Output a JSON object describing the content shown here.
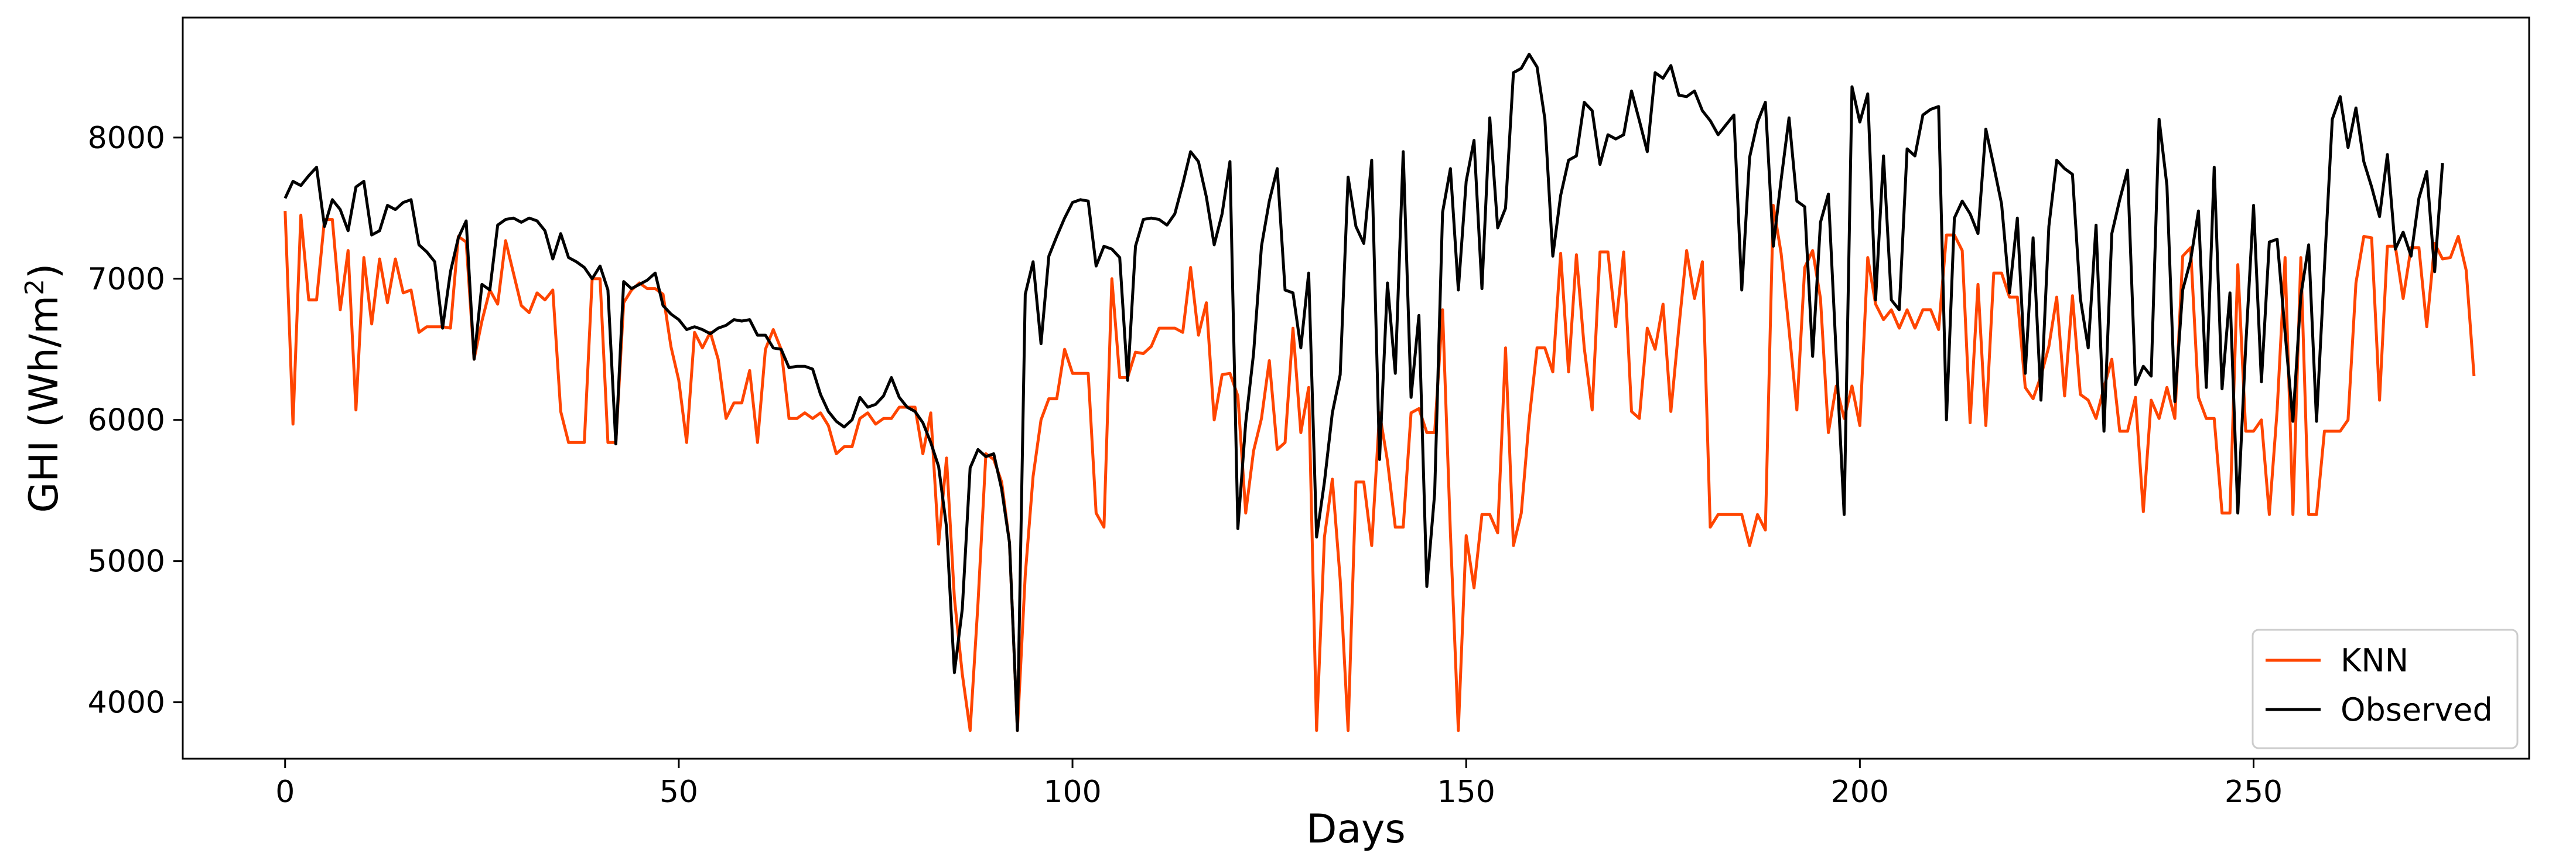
{
  "chart_data": {
    "type": "line",
    "title": "",
    "xlabel": "Days",
    "ylabel_text": "GHI (Wh/m",
    "ylabel_sup": "2",
    "ylabel_close": ")",
    "xlim": [
      -13,
      285
    ],
    "ylim": [
      3600,
      8850
    ],
    "xticks": [
      0,
      50,
      100,
      150,
      200,
      250
    ],
    "yticks": [
      4000,
      5000,
      6000,
      7000,
      8000
    ],
    "grid": false,
    "legend_position": "lower-right",
    "series": [
      {
        "name": "KNN",
        "color": "#ff4500",
        "x_start": 0,
        "values": [
          7480,
          5970,
          7450,
          6850,
          6850,
          7420,
          7420,
          6780,
          7200,
          6070,
          7150,
          6680,
          7140,
          6830,
          7140,
          6900,
          6920,
          6620,
          6660,
          6660,
          6660,
          6650,
          7300,
          7260,
          6430,
          6700,
          6920,
          6820,
          7270,
          7040,
          6810,
          6760,
          6900,
          6850,
          6920,
          6060,
          5840,
          5840,
          5840,
          7000,
          7000,
          5840,
          5840,
          6830,
          6920,
          6970,
          6930,
          6930,
          6890,
          6520,
          6280,
          5840,
          6620,
          6510,
          6620,
          6430,
          6010,
          6120,
          6120,
          6350,
          5840,
          6500,
          6640,
          6500,
          6010,
          6010,
          6050,
          6010,
          6050,
          5960,
          5760,
          5810,
          5810,
          6010,
          6050,
          5970,
          6010,
          6010,
          6090,
          6090,
          6090,
          5760,
          6050,
          5120,
          5730,
          4740,
          4200,
          3800,
          4700,
          5760,
          5720,
          5560,
          5130,
          3800,
          4900,
          5600,
          6000,
          6150,
          6150,
          6500,
          6330,
          6330,
          6330,
          5340,
          5240,
          7000,
          6300,
          6300,
          6480,
          6470,
          6520,
          6650,
          6650,
          6650,
          6620,
          7080,
          6600,
          6830,
          6000,
          6320,
          6330,
          6170,
          5340,
          5780,
          6010,
          6420,
          5790,
          5840,
          6650,
          5910,
          6230,
          3800,
          5170,
          5580,
          4870,
          3800,
          5560,
          5560,
          5110,
          6050,
          5710,
          5240,
          5240,
          6050,
          6080,
          5910,
          5910,
          6780,
          5200,
          3800,
          5180,
          4810,
          5330,
          5330,
          5200,
          6510,
          5110,
          5340,
          6000,
          6510,
          6510,
          6340,
          7180,
          6340,
          7170,
          6510,
          6070,
          7190,
          7190,
          6660,
          7190,
          6060,
          6010,
          6650,
          6500,
          6820,
          6060,
          6650,
          7200,
          6860,
          7120,
          5240,
          5330,
          5330,
          5330,
          5330,
          5110,
          5330,
          5220,
          7520,
          7180,
          6640,
          6070,
          7080,
          7200,
          6860,
          5910,
          6240,
          6010,
          6240,
          5960,
          7150,
          6820,
          6710,
          6780,
          6650,
          6780,
          6650,
          6780,
          6780,
          6640,
          7310,
          7310,
          7200,
          5980,
          6960,
          5960,
          7040,
          7040,
          6870,
          6870,
          6230,
          6150,
          6310,
          6520,
          6870,
          6170,
          6880,
          6180,
          6140,
          6010,
          6230,
          6430,
          5920,
          5920,
          6160,
          5350,
          6140,
          6010,
          6230,
          6010,
          7160,
          7220,
          6160,
          6010,
          6010,
          5340,
          5340,
          7100,
          5920,
          5920,
          6000,
          5330,
          6070,
          7150,
          5330,
          7150,
          5330,
          5330,
          5920,
          5920,
          5920,
          6000,
          6970,
          7300,
          7290,
          6140,
          7230,
          7230,
          6860,
          7220,
          7220,
          6660,
          7250,
          7140,
          7150,
          7300,
          7060,
          6310
        ]
      },
      {
        "name": "Observed",
        "color": "#000000",
        "x_start": 0,
        "values": [
          7570,
          7690,
          7660,
          7730,
          7790,
          7370,
          7560,
          7490,
          7340,
          7650,
          7690,
          7310,
          7340,
          7520,
          7490,
          7540,
          7560,
          7240,
          7190,
          7120,
          6650,
          7050,
          7290,
          7410,
          6430,
          6960,
          6920,
          7380,
          7420,
          7430,
          7400,
          7430,
          7410,
          7340,
          7140,
          7320,
          7150,
          7120,
          7080,
          7000,
          7090,
          6920,
          5830,
          6980,
          6930,
          6960,
          6990,
          7040,
          6810,
          6750,
          6710,
          6640,
          6660,
          6640,
          6610,
          6650,
          6670,
          6710,
          6700,
          6710,
          6600,
          6600,
          6510,
          6500,
          6370,
          6380,
          6380,
          6360,
          6180,
          6060,
          5990,
          5950,
          6000,
          6160,
          6090,
          6110,
          6170,
          6300,
          6160,
          6090,
          6060,
          5980,
          5840,
          5670,
          5240,
          4210,
          4660,
          5660,
          5790,
          5740,
          5760,
          5510,
          5130,
          3800,
          6890,
          7120,
          6540,
          7160,
          7300,
          7430,
          7540,
          7560,
          7550,
          7090,
          7230,
          7210,
          7150,
          6280,
          7230,
          7420,
          7430,
          7420,
          7380,
          7460,
          7670,
          7900,
          7830,
          7580,
          7240,
          7460,
          7830,
          5230,
          5980,
          6470,
          7230,
          7550,
          7780,
          6920,
          6900,
          6510,
          7040,
          5170,
          5560,
          6050,
          6320,
          7720,
          7370,
          7250,
          7840,
          5720,
          6970,
          6330,
          7900,
          6160,
          6740,
          4820,
          5480,
          7470,
          7780,
          6920,
          7690,
          7980,
          6930,
          8140,
          7360,
          7500,
          8460,
          8490,
          8590,
          8500,
          8130,
          7160,
          7590,
          7840,
          7870,
          8250,
          8190,
          7810,
          8020,
          7990,
          8020,
          8330,
          8120,
          7900,
          8460,
          8420,
          8510,
          8300,
          8290,
          8330,
          8190,
          8120,
          8020,
          8090,
          8160,
          6920,
          7860,
          8110,
          8250,
          7230,
          7700,
          8140,
          7550,
          7510,
          6450,
          7400,
          7600,
          6460,
          5330,
          8360,
          8110,
          8310,
          6850,
          7870,
          6850,
          6780,
          7920,
          7870,
          8160,
          8200,
          8220,
          6000,
          7430,
          7550,
          7460,
          7320,
          8060,
          7800,
          7530,
          6900,
          7430,
          6330,
          7290,
          6140,
          7370,
          7840,
          7780,
          7740,
          6860,
          6510,
          7380,
          5920,
          7320,
          7560,
          7770,
          6250,
          6380,
          6310,
          8130,
          7660,
          6130,
          6920,
          7130,
          7480,
          6230,
          7790,
          6220,
          6900,
          5340,
          6520,
          7520,
          6270,
          7260,
          7280,
          6620,
          5990,
          6880,
          7240,
          5990,
          7080,
          8130,
          8290,
          7930,
          8210,
          7830,
          7650,
          7440,
          7880,
          7210,
          7330,
          7160,
          7570,
          7760,
          7050,
          7820
        ]
      }
    ]
  }
}
